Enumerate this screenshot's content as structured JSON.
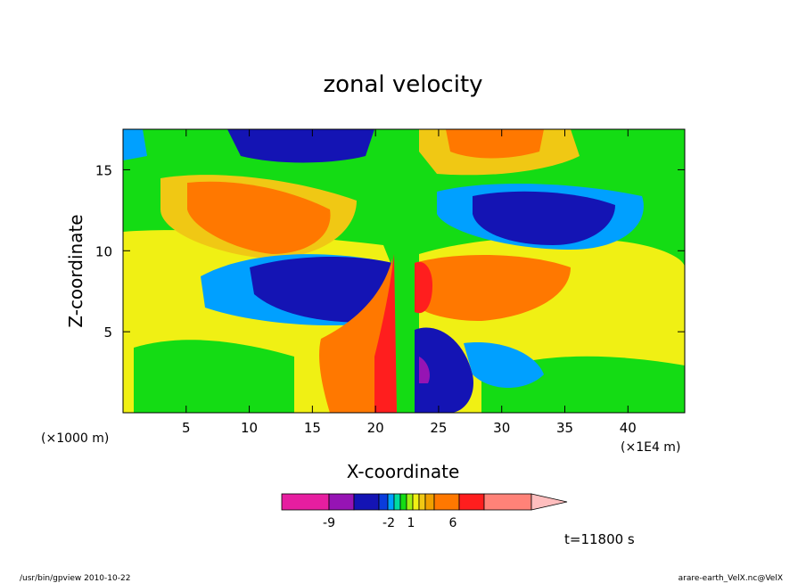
{
  "chart_data": {
    "type": "heatmap",
    "title": "zonal velocity",
    "xlabel": "X-coordinate",
    "ylabel": "Z-coordinate",
    "x_unit_left": "(×1000 m)",
    "x_unit_right": "(×1E4 m)",
    "xlim": [
      0,
      44.5
    ],
    "ylim": [
      0,
      17.5
    ],
    "x_ticks": [
      5,
      10,
      15,
      20,
      25,
      30,
      35,
      40
    ],
    "x_tick_labels": [
      "5",
      "10",
      "15",
      "20",
      "25",
      "30",
      "35",
      "40"
    ],
    "y_ticks": [
      5,
      10,
      15
    ],
    "y_tick_labels": [
      "5",
      "10",
      "15"
    ],
    "colorbar": {
      "colors": [
        "#e61ea0",
        "#9614b4",
        "#1414b4",
        "#0a3cdc",
        "#00a0ff",
        "#00dca0",
        "#14dc14",
        "#a0f014",
        "#f0f014",
        "#f0c814",
        "#f0a000",
        "#ff7800",
        "#ff1e1e",
        "#ff8278",
        "#ffbebe"
      ],
      "tick_labels": [
        "-9",
        "-2",
        "1",
        "6"
      ]
    },
    "time_label": "t=11800 s"
  },
  "footer": {
    "left": "/usr/bin/gpview   2010-10-22",
    "right": "arare-earth_VelX.nc@VelX"
  }
}
